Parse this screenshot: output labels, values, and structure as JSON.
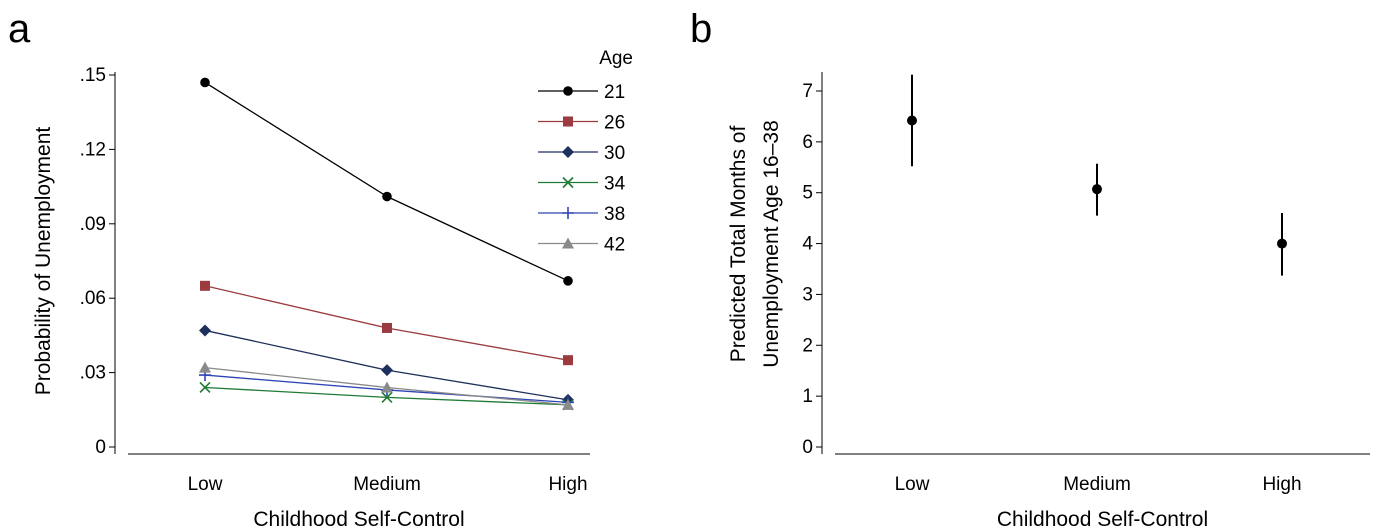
{
  "chart_data": [
    {
      "panel": "a",
      "type": "line",
      "categories": [
        "Low",
        "Medium",
        "High"
      ],
      "xlabel": "Childhood Self-Control",
      "ylabel": "Probability of Unemployment",
      "ylim": [
        0,
        0.15
      ],
      "yticks": [
        {
          "value": 0,
          "label": "0"
        },
        {
          "value": 0.03,
          "label": ".03"
        },
        {
          "value": 0.06,
          "label": ".06"
        },
        {
          "value": 0.09,
          "label": ".09"
        },
        {
          "value": 0.12,
          "label": ".12"
        },
        {
          "value": 0.15,
          "label": ".15"
        }
      ],
      "legend": {
        "title": "Age",
        "position": "top-right"
      },
      "series": [
        {
          "name": "21",
          "marker": "circle",
          "color": "#000000",
          "values": [
            0.147,
            0.101,
            0.067
          ]
        },
        {
          "name": "26",
          "marker": "square",
          "color": "#9b3a3f",
          "values": [
            0.065,
            0.048,
            0.035
          ]
        },
        {
          "name": "30",
          "marker": "diamond",
          "color": "#1f2f5c",
          "values": [
            0.047,
            0.031,
            0.019
          ]
        },
        {
          "name": "34",
          "marker": "x",
          "color": "#1f7a34",
          "values": [
            0.024,
            0.02,
            0.017
          ]
        },
        {
          "name": "38",
          "marker": "plus",
          "color": "#2e45b5",
          "values": [
            0.029,
            0.023,
            0.018
          ]
        },
        {
          "name": "42",
          "marker": "triangle",
          "color": "#8a8a8a",
          "values": [
            0.032,
            0.024,
            0.017
          ]
        }
      ],
      "grid": false
    },
    {
      "panel": "b",
      "type": "scatter",
      "categories": [
        "Low",
        "Medium",
        "High"
      ],
      "xlabel": "Childhood Self-Control",
      "ylabel_lines": [
        "Predicted Total Months of",
        "Unemployment Age 16–38"
      ],
      "ylim": [
        0,
        7
      ],
      "yticks": [
        {
          "value": 0,
          "label": "0"
        },
        {
          "value": 1,
          "label": "1"
        },
        {
          "value": 2,
          "label": "2"
        },
        {
          "value": 3,
          "label": "3"
        },
        {
          "value": 4,
          "label": "4"
        },
        {
          "value": 5,
          "label": "5"
        },
        {
          "value": 6,
          "label": "6"
        },
        {
          "value": 7,
          "label": "7"
        }
      ],
      "points": [
        {
          "category": "Low",
          "value": 6.42,
          "lower": 5.52,
          "upper": 7.32
        },
        {
          "category": "Medium",
          "value": 5.07,
          "lower": 4.55,
          "upper": 5.57
        },
        {
          "category": "High",
          "value": 4.0,
          "lower": 3.37,
          "upper": 4.6
        }
      ],
      "color": "#000000",
      "grid": false
    }
  ]
}
